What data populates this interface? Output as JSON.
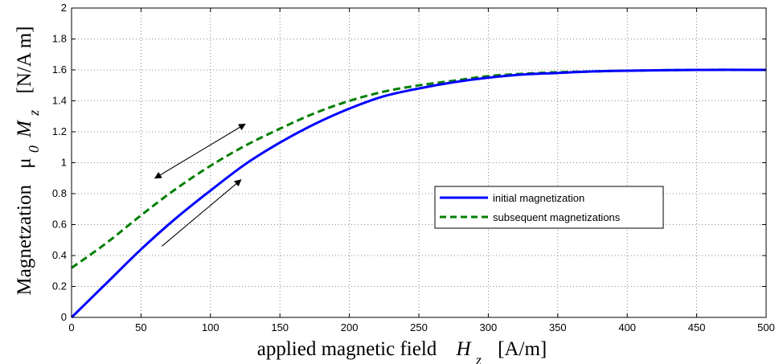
{
  "chart_data": {
    "type": "line",
    "xlabel": {
      "prefix": "applied magnetic field",
      "symbol": "H",
      "subscript": "z",
      "unit": "[A/m]"
    },
    "ylabel": {
      "prefix": "Magnetzation",
      "mu": "μ",
      "mu_sub": "0",
      "symbol": "M",
      "subscript": "z",
      "unit": "[N/A m]"
    },
    "xlim": [
      0,
      500
    ],
    "ylim": [
      0,
      2
    ],
    "xticks": [
      "0",
      "50",
      "100",
      "150",
      "200",
      "250",
      "300",
      "350",
      "400",
      "450",
      "500"
    ],
    "yticks": [
      "0",
      "0.2",
      "0.4",
      "0.6",
      "0.8",
      "1",
      "1.2",
      "1.4",
      "1.6",
      "1.8",
      "2"
    ],
    "grid": true,
    "legend_placement": "center-right",
    "series": [
      {
        "name": "initial magnetization",
        "color": "#0000ff",
        "style": "solid",
        "x": [
          0,
          25,
          50,
          75,
          100,
          125,
          150,
          175,
          200,
          225,
          250,
          275,
          300,
          325,
          350,
          375,
          400,
          450,
          500
        ],
        "y": [
          0,
          0.22,
          0.44,
          0.64,
          0.82,
          0.99,
          1.13,
          1.25,
          1.35,
          1.43,
          1.48,
          1.52,
          1.55,
          1.57,
          1.58,
          1.59,
          1.595,
          1.6,
          1.6
        ]
      },
      {
        "name": "subsequent magnetizations",
        "color": "#007f00",
        "style": "dashed",
        "x": [
          0,
          25,
          50,
          75,
          100,
          125,
          150,
          175,
          200,
          225,
          250,
          275,
          300,
          325,
          350,
          375,
          400,
          450,
          500
        ],
        "y": [
          0.32,
          0.48,
          0.66,
          0.83,
          0.98,
          1.11,
          1.22,
          1.32,
          1.4,
          1.46,
          1.5,
          1.53,
          1.56,
          1.575,
          1.585,
          1.59,
          1.595,
          1.6,
          1.6
        ]
      }
    ],
    "annotations": [
      {
        "type": "double-arrow",
        "from": [
          60,
          0.9
        ],
        "to": [
          125,
          1.25
        ]
      },
      {
        "type": "arrow",
        "from": [
          65,
          0.46
        ],
        "to": [
          122,
          0.89
        ]
      }
    ]
  }
}
